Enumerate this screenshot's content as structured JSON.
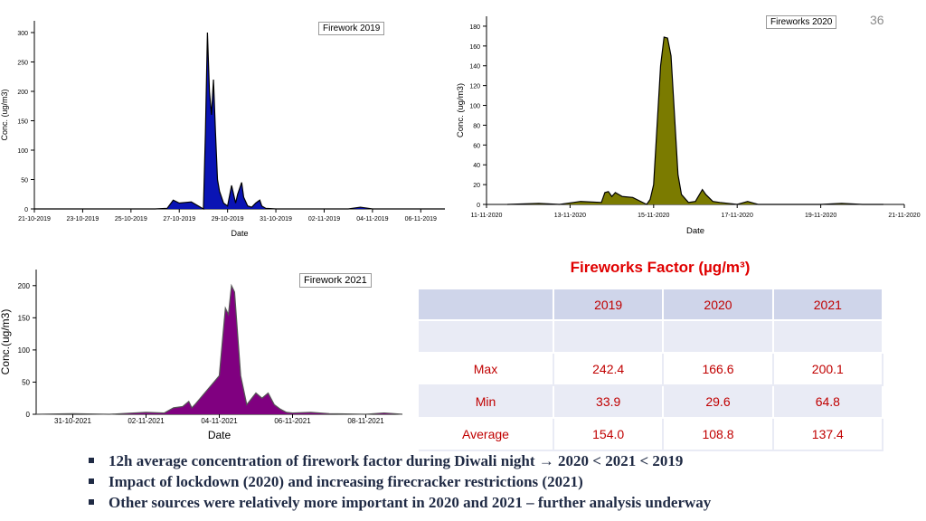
{
  "slide_number": "36",
  "chart_data": [
    {
      "type": "area",
      "title": "Firework 2019",
      "xlabel": "Date",
      "ylabel": "Conc. (ug/m3)",
      "xlim": [
        "21-10-2019",
        "07-11-2019"
      ],
      "ylim": [
        0,
        320
      ],
      "yticks": [
        "0",
        "50",
        "100",
        "150",
        "200",
        "250",
        "300"
      ],
      "xticks": [
        "21-10-2019",
        "23-10-2019",
        "25-10-2019",
        "27-10-2019",
        "29-10-2019",
        "31-10-2019",
        "02-11-2019",
        "04-11-2019",
        "06-11-2019"
      ],
      "fill_color": "#0a14b4",
      "series": [
        {
          "x": [
            "21-10-2019",
            "26-10-2019",
            "26-10-2019 12:00",
            "26-10-2019 18:00",
            "27-10-2019",
            "27-10-2019 12:00",
            "28-10-2019",
            "28-10-2019 02:00",
            "28-10-2019 04:00",
            "28-10-2019 06:00",
            "28-10-2019 08:00",
            "28-10-2019 10:00",
            "28-10-2019 12:00",
            "28-10-2019 14:00",
            "28-10-2019 16:00",
            "28-10-2019 18:00",
            "28-10-2019 20:00",
            "29-10-2019",
            "29-10-2019 04:00",
            "29-10-2019 08:00",
            "29-10-2019 10:00",
            "29-10-2019 14:00",
            "29-10-2019 16:00",
            "29-10-2019 20:00",
            "30-10-2019",
            "30-10-2019 04:00",
            "30-10-2019 08:00",
            "30-10-2019 10:00",
            "30-10-2019 14:00",
            "31-10-2019",
            "03-11-2019",
            "03-11-2019 12:00",
            "04-11-2019",
            "07-11-2019"
          ],
          "values": [
            0,
            0,
            1,
            15,
            10,
            12,
            0,
            130,
            300,
            200,
            160,
            220,
            130,
            50,
            30,
            20,
            10,
            5,
            40,
            10,
            25,
            45,
            20,
            5,
            3,
            10,
            15,
            5,
            1,
            0,
            0,
            3,
            0,
            0
          ]
        }
      ],
      "legend": "top-right"
    },
    {
      "type": "area",
      "title": "Fireworks 2020",
      "xlabel": "Date",
      "ylabel": "Conc. (ug/m3)",
      "xlim": [
        "11-11-2020",
        "21-11-2020"
      ],
      "ylim": [
        0,
        190
      ],
      "yticks": [
        "0",
        "20",
        "40",
        "60",
        "80",
        "100",
        "120",
        "140",
        "160",
        "180"
      ],
      "xticks": [
        "11-11-2020",
        "13-11-2020",
        "15-11-2020",
        "17-11-2020",
        "19-11-2020",
        "21-11-2020"
      ],
      "fill_color": "#7b7b00",
      "series": [
        {
          "x": [
            "11-11-2020 12:00",
            "12-11-2020 06:00",
            "12-11-2020 18:00",
            "13-11-2020 06:00",
            "13-11-2020 18:00",
            "13-11-2020 20:00",
            "13-11-2020 22:00",
            "14-11-2020",
            "14-11-2020 02:00",
            "14-11-2020 06:00",
            "14-11-2020 12:00",
            "14-11-2020 20:00",
            "14-11-2020 22:00",
            "15-11-2020",
            "15-11-2020 04:00",
            "15-11-2020 06:00",
            "15-11-2020 08:00",
            "15-11-2020 10:00",
            "15-11-2020 12:00",
            "15-11-2020 14:00",
            "15-11-2020 16:00",
            "15-11-2020 20:00",
            "16-11-2020",
            "16-11-2020 04:00",
            "16-11-2020 06:00",
            "16-11-2020 10:00",
            "16-11-2020 14:00",
            "17-11-2020",
            "17-11-2020 06:00",
            "17-11-2020 12:00",
            "18-11-2020",
            "19-11-2020",
            "19-11-2020 12:00",
            "20-11-2020",
            "20-11-2020 12:00"
          ],
          "values": [
            0,
            1,
            0,
            3,
            2,
            12,
            13,
            8,
            12,
            8,
            7,
            0,
            5,
            20,
            140,
            169,
            168,
            150,
            90,
            30,
            10,
            2,
            3,
            15,
            10,
            3,
            2,
            0,
            3,
            0,
            0,
            0,
            1,
            0,
            0
          ]
        }
      ],
      "legend": "top-right"
    },
    {
      "type": "area",
      "title": "Firework 2021",
      "xlabel": "Date",
      "ylabel": "Conc.(ug/m3)",
      "xlim": [
        "30-10-2021",
        "09-11-2021"
      ],
      "ylim": [
        0,
        225
      ],
      "yticks": [
        "0",
        "50",
        "100",
        "150",
        "200"
      ],
      "xticks": [
        "31-10-2021",
        "02-11-2021",
        "04-11-2021",
        "06-11-2021",
        "08-11-2021"
      ],
      "fill_color": "#800080",
      "series": [
        {
          "x": [
            "30-10-2021",
            "31-10-2021",
            "01-11-2021",
            "02-11-2021",
            "02-11-2021 12:00",
            "02-11-2021 18:00",
            "03-11-2021",
            "03-11-2021 04:00",
            "03-11-2021 06:00",
            "03-11-2021 08:00",
            "04-11-2021",
            "04-11-2021 04:00",
            "04-11-2021 06:00",
            "04-11-2021 08:00",
            "04-11-2021 10:00",
            "04-11-2021 14:00",
            "04-11-2021 18:00",
            "05-11-2021",
            "05-11-2021 04:00",
            "05-11-2021 08:00",
            "05-11-2021 12:00",
            "05-11-2021 16:00",
            "05-11-2021 20:00",
            "06-11-2021",
            "06-11-2021 12:00",
            "07-11-2021",
            "08-11-2021",
            "08-11-2021 12:00",
            "09-11-2021"
          ],
          "values": [
            0,
            1,
            0,
            3,
            2,
            10,
            12,
            20,
            10,
            15,
            60,
            165,
            155,
            200,
            190,
            60,
            15,
            33,
            25,
            33,
            15,
            8,
            3,
            2,
            3,
            1,
            0,
            2,
            0
          ]
        }
      ],
      "legend": "top-right"
    },
    {
      "type": "table",
      "title": "Fireworks Factor (µg/m³)",
      "columns": [
        "",
        "2019",
        "2020",
        "2021"
      ],
      "rows": [
        [
          "Max",
          "242.4",
          "166.6",
          "200.1"
        ],
        [
          "Min",
          "33.9",
          "29.6",
          "64.8"
        ],
        [
          "Average",
          "154.0",
          "108.8",
          "137.4"
        ]
      ]
    }
  ],
  "bullets": [
    "12h average concentration of firework factor during Diwali night → 2020 < 2021 < 2019",
    "Impact of lockdown (2020) and increasing firecracker restrictions (2021)",
    "Other sources were relatively more important in 2020 and 2021 – further analysis underway"
  ]
}
